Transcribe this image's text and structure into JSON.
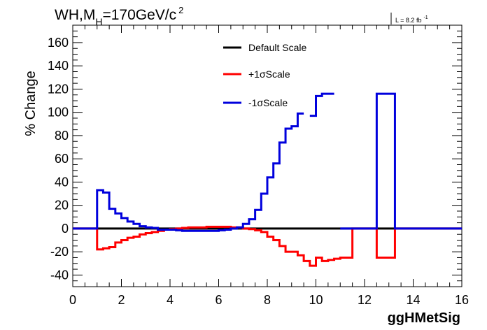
{
  "chart_data": {
    "type": "line",
    "title_main": "WH,M",
    "title_sub": "H",
    "title_rest": "=170GeV/c",
    "title_sup": "2",
    "lumi_main": "L = 8.2 fb",
    "lumi_sup": "-1",
    "xlabel": "ggHMetSig",
    "ylabel": "% Change",
    "xlim": [
      0,
      16
    ],
    "ylim": [
      -50,
      175
    ],
    "xticks": [
      "0",
      "2",
      "4",
      "6",
      "8",
      "10",
      "12",
      "14",
      "16"
    ],
    "yticks": [
      "-40",
      "-20",
      "0",
      "20",
      "40",
      "60",
      "80",
      "100",
      "120",
      "140",
      "160"
    ],
    "legend_position": "top-center",
    "bin_width": 0.25,
    "series": [
      {
        "name": "Default Scale",
        "color": "#000000",
        "values": [
          0,
          0,
          0,
          0,
          0,
          0,
          0,
          0,
          0,
          0,
          0,
          0,
          0,
          0,
          0,
          0,
          0,
          0,
          0,
          0,
          0,
          0,
          0,
          0,
          0,
          0,
          0,
          0,
          0,
          0,
          0,
          0,
          0,
          0,
          0,
          0,
          0,
          0,
          0,
          0,
          0,
          0,
          0,
          0,
          0,
          0,
          0,
          0,
          0,
          0,
          0,
          0,
          0,
          0,
          0,
          0,
          0,
          0,
          0,
          0,
          0,
          0,
          0,
          0
        ]
      },
      {
        "name": "+1σScale",
        "color": "#ff0000",
        "values": [
          0,
          0,
          0,
          0,
          -18,
          -17,
          -16,
          -12,
          -10,
          -8,
          -7,
          -5,
          -4,
          -3,
          -2,
          -1,
          -0.5,
          0,
          0.5,
          1,
          1,
          1,
          1.5,
          1.5,
          1.5,
          1.5,
          1,
          1,
          0,
          -0.5,
          -1.5,
          -3,
          -7,
          -10,
          -15,
          -20,
          -20,
          -23,
          -28,
          -32,
          -25,
          -28,
          -27,
          -26,
          -25,
          -25,
          0,
          0,
          0,
          0,
          -25,
          -25,
          -25,
          0,
          0,
          0,
          0,
          0,
          0,
          0,
          0,
          0,
          0,
          0
        ]
      },
      {
        "name": "-1σScale",
        "color": "#0000dd",
        "values": [
          0,
          0,
          0,
          0,
          33,
          31,
          17,
          13,
          9,
          6,
          4,
          2,
          1,
          0.5,
          -1,
          -1,
          -1,
          -1.5,
          -2,
          -2,
          -2,
          -2,
          -2,
          -2,
          -1.5,
          -1,
          0,
          1,
          4,
          8,
          16,
          30,
          44,
          56,
          74,
          86,
          88,
          99,
          null,
          97,
          114,
          116,
          116,
          null,
          0,
          0,
          0,
          0,
          0,
          0,
          116,
          116,
          116,
          0,
          0,
          0,
          0,
          0,
          0,
          0,
          0,
          0,
          0,
          0
        ]
      }
    ]
  }
}
